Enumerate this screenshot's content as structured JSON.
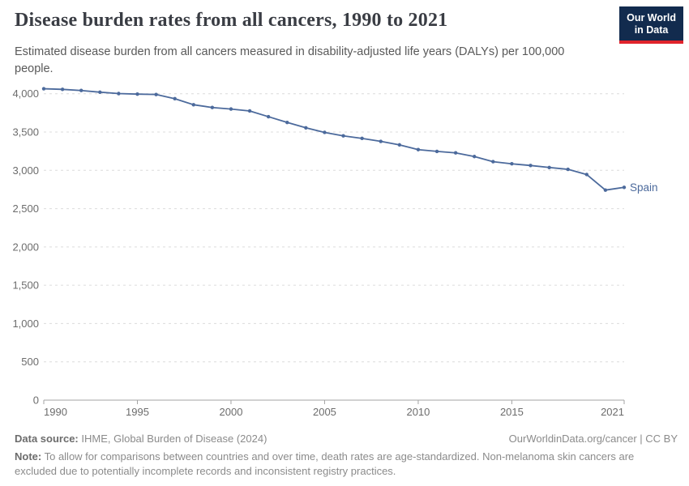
{
  "header": {
    "title": "Disease burden rates from all cancers, 1990 to 2021",
    "logo": {
      "line1": "Our World",
      "line2": "in Data"
    }
  },
  "subtitle": "Estimated disease burden from all cancers measured in disability-adjusted life years (DALYs) per 100,000 people.",
  "chart_data": {
    "type": "line",
    "title": "Disease burden rates from all cancers, 1990 to 2021",
    "xlabel": "",
    "ylabel": "DALYs per 100,000 people",
    "x": [
      1990,
      1991,
      1992,
      1993,
      1994,
      1995,
      1996,
      1997,
      1998,
      1999,
      2000,
      2001,
      2002,
      2003,
      2004,
      2005,
      2006,
      2007,
      2008,
      2009,
      2010,
      2011,
      2012,
      2013,
      2014,
      2015,
      2016,
      2017,
      2018,
      2019,
      2020,
      2021
    ],
    "series": [
      {
        "name": "Spain",
        "values": [
          4065,
          4057,
          4042,
          4020,
          4002,
          3995,
          3990,
          3935,
          3856,
          3820,
          3800,
          3775,
          3700,
          3625,
          3555,
          3495,
          3450,
          3417,
          3378,
          3332,
          3270,
          3247,
          3228,
          3180,
          3113,
          3085,
          3063,
          3037,
          3013,
          2945,
          2742,
          2778
        ]
      }
    ],
    "x_ticks": [
      1990,
      1995,
      2000,
      2005,
      2010,
      2015,
      2021
    ],
    "y_ticks": [
      0,
      500,
      1000,
      1500,
      2000,
      2500,
      3000,
      3500,
      4000
    ],
    "xlim": [
      1990,
      2021
    ],
    "ylim": [
      0,
      4000
    ],
    "grid": "horizontal dashed",
    "legend_position": "end-of-line label"
  },
  "footer": {
    "source_label": "Data source:",
    "source_text": " IHME, Global Burden of Disease (2024)",
    "link": "OurWorldinData.org/cancer | CC BY",
    "note_label": "Note:",
    "note_text": " To allow for comparisons between countries and over time, death rates are age-standardized. Non-melanoma skin cancers are excluded due to potentially incomplete records and inconsistent registry practices."
  },
  "colors": {
    "line": "#4C6A9C",
    "grid": "#dcdcdc",
    "axis": "#a3a3a3",
    "tick_label": "#6c6c6c",
    "logo_bg": "#122B4E",
    "logo_bar": "#E0232C"
  }
}
